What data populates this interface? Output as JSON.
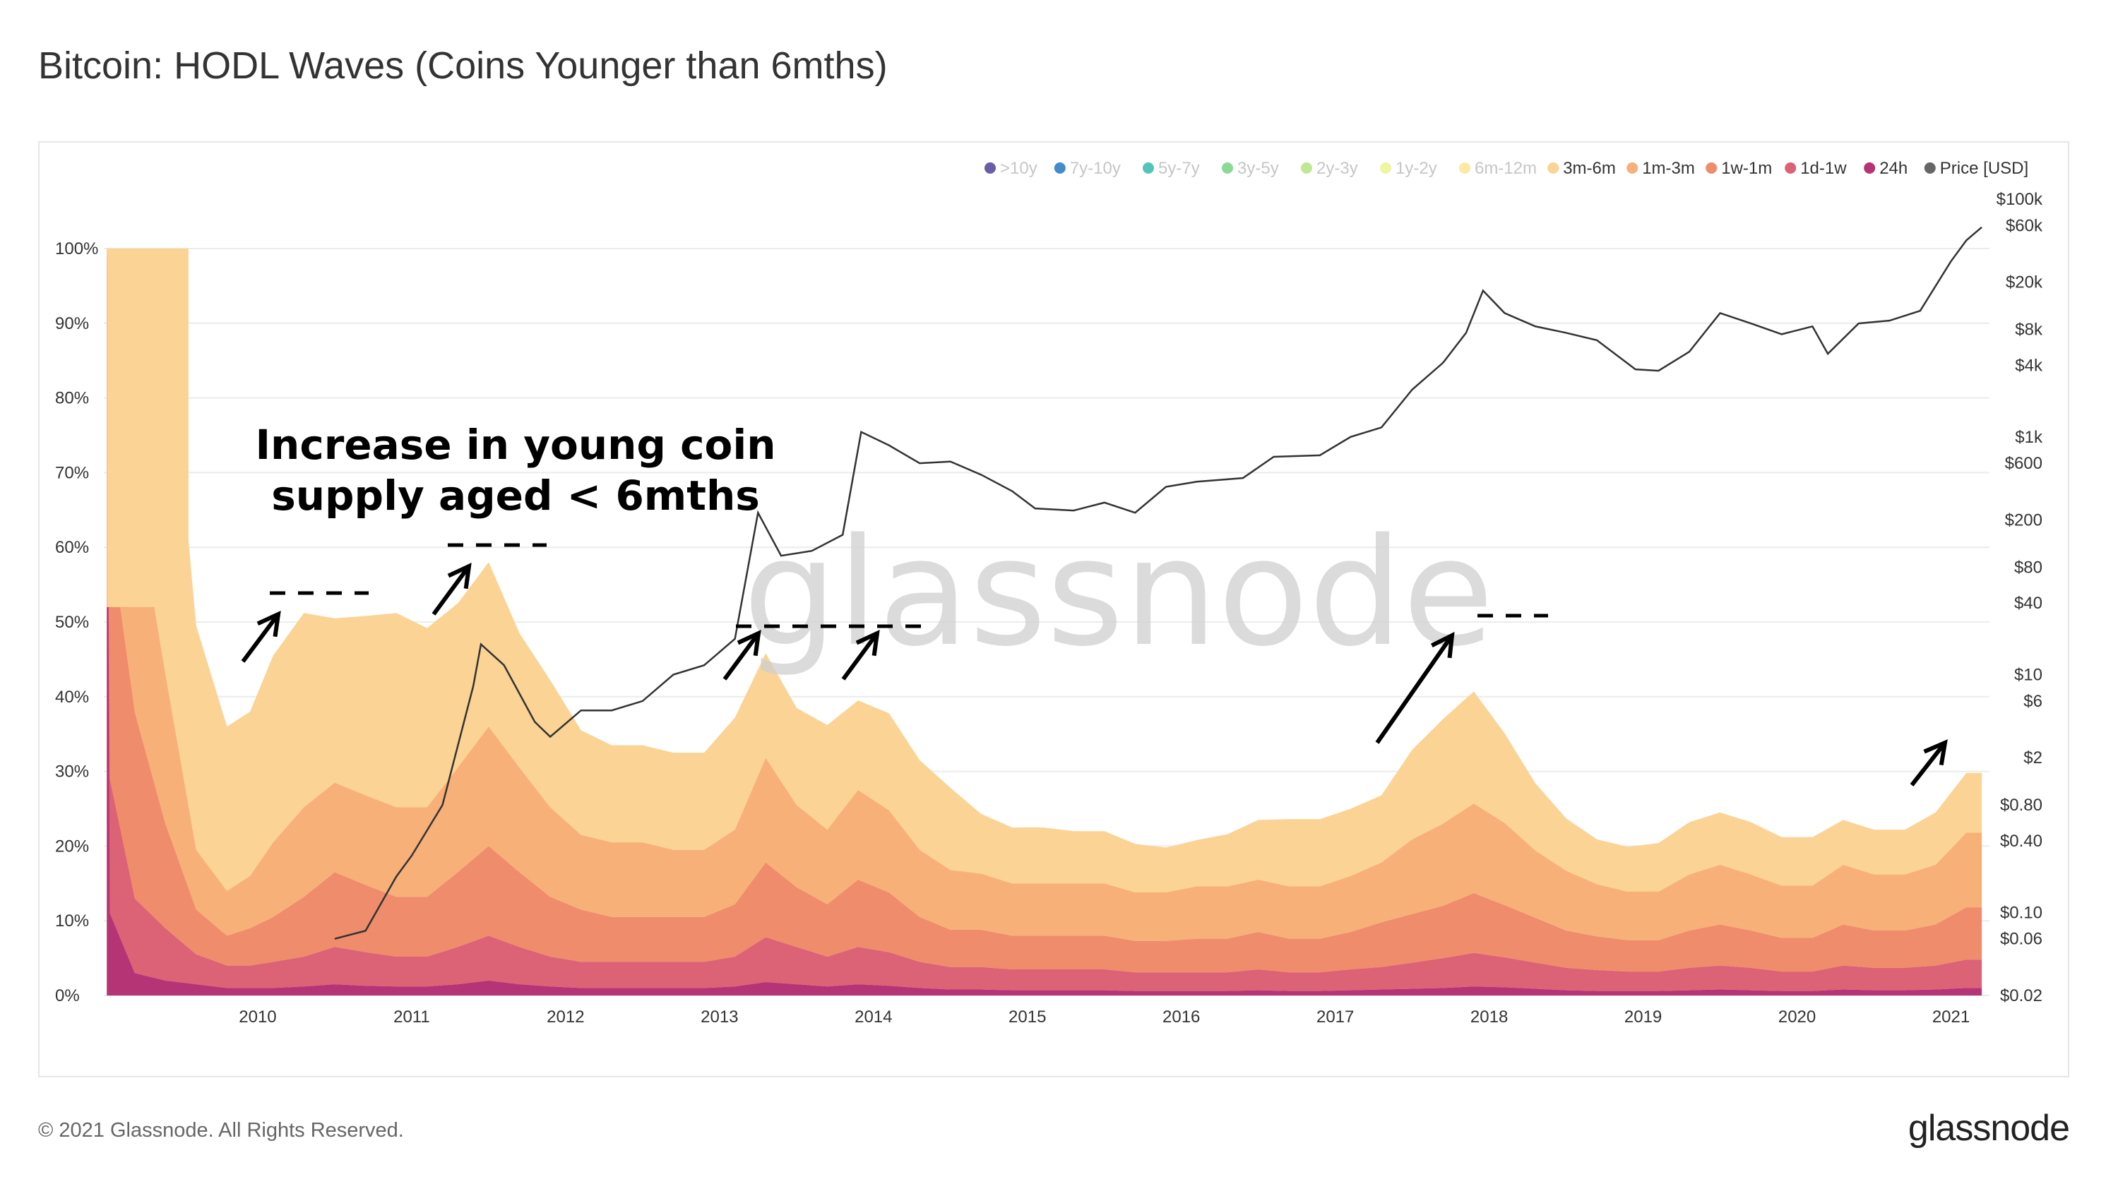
{
  "title": "Bitcoin: HODL Waves (Coins Younger than 6mths)",
  "footer": {
    "copyright": "© 2021 Glassnode. All Rights Reserved.",
    "logo": "glassnode"
  },
  "watermark": "glassnode",
  "annotation": {
    "line1": "Increase in young coin",
    "line2": "supply aged < 6mths"
  },
  "colors": {
    "3m-6m": "#fbd394",
    "1m-3m": "#f8b079",
    "1w-1m": "#ef8c6b",
    "1d-1w": "#dc6276",
    "24h": "#b43475",
    "price": "#333333"
  },
  "chart_data": {
    "type": "area",
    "stacked": true,
    "x_ticks": [
      "2010",
      "2011",
      "2012",
      "2013",
      "2014",
      "2015",
      "2016",
      "2017",
      "2018",
      "2019",
      "2020",
      "2021"
    ],
    "y_left_ticks": [
      "0%",
      "10%",
      "20%",
      "30%",
      "40%",
      "50%",
      "60%",
      "70%",
      "80%",
      "90%",
      "100%"
    ],
    "y_right_ticks": [
      "$0.02",
      "$0.06",
      "$0.10",
      "$0.40",
      "$0.80",
      "$2",
      "$6",
      "$10",
      "$40",
      "$80",
      "$200",
      "$600",
      "$1k",
      "$4k",
      "$8k",
      "$20k",
      "$60k",
      "$100k"
    ],
    "ylim": [
      0,
      100
    ],
    "right_axis_scale": "log",
    "legend_placement": "top-right",
    "legend": [
      {
        "label": ">10y",
        "color": "#5b4aa0",
        "active": false
      },
      {
        "label": "7y-10y",
        "color": "#2f7fc1",
        "active": false
      },
      {
        "label": "5y-7y",
        "color": "#3fbfb0",
        "active": false
      },
      {
        "label": "3y-5y",
        "color": "#7fd48a",
        "active": false
      },
      {
        "label": "2y-3y",
        "color": "#b8e68a",
        "active": false
      },
      {
        "label": "1y-2y",
        "color": "#ecf59a",
        "active": false
      },
      {
        "label": "6m-12m",
        "color": "#fbe79a",
        "active": false
      },
      {
        "label": "3m-6m",
        "color": "#fbd394",
        "active": true
      },
      {
        "label": "1m-3m",
        "color": "#f8b079",
        "active": true
      },
      {
        "label": "1w-1m",
        "color": "#ef8c6b",
        "active": true
      },
      {
        "label": "1d-1w",
        "color": "#dc6276",
        "active": true
      },
      {
        "label": "24h",
        "color": "#b43475",
        "active": true
      },
      {
        "label": "Price [USD]",
        "color": "#666666",
        "active": true
      }
    ],
    "x": [
      2009.2,
      2009.4,
      2009.6,
      2009.8,
      2009.95,
      2010.1,
      2010.3,
      2010.5,
      2010.7,
      2010.9,
      2011.1,
      2011.3,
      2011.5,
      2011.7,
      2011.9,
      2012.1,
      2012.3,
      2012.5,
      2012.7,
      2012.9,
      2013.1,
      2013.3,
      2013.5,
      2013.7,
      2013.9,
      2014.1,
      2014.3,
      2014.5,
      2014.7,
      2014.9,
      2015.1,
      2015.3,
      2015.5,
      2015.7,
      2015.9,
      2016.1,
      2016.3,
      2016.5,
      2016.7,
      2016.9,
      2017.1,
      2017.3,
      2017.5,
      2017.7,
      2017.9,
      2018.1,
      2018.3,
      2018.5,
      2018.7,
      2018.9,
      2019.1,
      2019.3,
      2019.5,
      2019.7,
      2019.9,
      2020.1,
      2020.3,
      2020.5,
      2020.7,
      2020.9,
      2021.1,
      2021.2
    ],
    "series": [
      {
        "name": "24h",
        "values": [
          3,
          2,
          1.5,
          1,
          1,
          1,
          1.2,
          1.5,
          1.3,
          1.2,
          1.2,
          1.5,
          2,
          1.5,
          1.2,
          1,
          1,
          1,
          1,
          1,
          1.2,
          1.8,
          1.5,
          1.2,
          1.5,
          1.3,
          1,
          0.8,
          0.8,
          0.7,
          0.7,
          0.7,
          0.7,
          0.6,
          0.6,
          0.6,
          0.6,
          0.7,
          0.6,
          0.6,
          0.7,
          0.8,
          0.9,
          1,
          1.2,
          1.1,
          0.9,
          0.7,
          0.6,
          0.6,
          0.6,
          0.7,
          0.8,
          0.7,
          0.6,
          0.6,
          0.8,
          0.7,
          0.7,
          0.8,
          1,
          1
        ]
      },
      {
        "name": "1d-1w",
        "values": [
          10,
          7,
          4,
          3,
          3,
          3.5,
          4,
          5,
          4.5,
          4,
          4,
          5,
          6,
          5,
          4,
          3.5,
          3.5,
          3.5,
          3.5,
          3.5,
          4,
          6,
          5,
          4,
          5,
          4.5,
          3.5,
          3,
          3,
          2.8,
          2.8,
          2.8,
          2.8,
          2.5,
          2.5,
          2.5,
          2.5,
          2.8,
          2.5,
          2.5,
          2.8,
          3,
          3.5,
          4,
          4.5,
          4,
          3.5,
          3,
          2.8,
          2.6,
          2.6,
          3,
          3.2,
          3,
          2.6,
          2.6,
          3.2,
          3,
          3,
          3.2,
          3.8,
          3.8
        ]
      },
      {
        "name": "1w-1m",
        "values": [
          25,
          14,
          6,
          4,
          5,
          6,
          8,
          10,
          9,
          8,
          8,
          10,
          12,
          10,
          8,
          7,
          6,
          6,
          6,
          6,
          7,
          10,
          8,
          7,
          9,
          8,
          6,
          5,
          5,
          4.5,
          4.5,
          4.5,
          4.5,
          4.2,
          4.2,
          4.5,
          4.5,
          5,
          4.5,
          4.5,
          5,
          6,
          6.5,
          7,
          8,
          7,
          6,
          5,
          4.5,
          4.2,
          4.2,
          5,
          5.5,
          5,
          4.5,
          4.5,
          5.5,
          5,
          5,
          5.5,
          7,
          7
        ]
      },
      {
        "name": "1m-3m",
        "values": [
          30,
          20,
          8,
          6,
          7,
          10,
          12,
          12,
          12,
          12,
          12,
          14,
          16,
          14,
          12,
          10,
          10,
          10,
          9,
          9,
          10,
          14,
          11,
          10,
          12,
          11,
          9,
          8,
          7.5,
          7,
          7,
          7,
          7,
          6.5,
          6.5,
          7,
          7,
          7,
          7,
          7,
          7.5,
          8,
          10,
          11,
          12,
          11,
          9,
          8,
          7,
          6.5,
          6.5,
          7.5,
          8,
          7.5,
          7,
          7,
          8,
          7.5,
          7.5,
          8,
          10,
          10
        ]
      },
      {
        "name": "3m-6m",
        "values": [
          32,
          52,
          30,
          22,
          22,
          25,
          26,
          22,
          24,
          26,
          24,
          22,
          22,
          18,
          17,
          14,
          13,
          13,
          13,
          13,
          15,
          14,
          13,
          14,
          12,
          13,
          12,
          11,
          8,
          7.5,
          7.5,
          7,
          7,
          6.5,
          6,
          6.2,
          7,
          8,
          9,
          9,
          9,
          9,
          12,
          14,
          15,
          12,
          9,
          7,
          6,
          6,
          6.5,
          7,
          7,
          7,
          6.5,
          6.5,
          6,
          6,
          6,
          7,
          8,
          8
        ]
      }
    ],
    "price_usd": {
      "x": [
        2010.5,
        2010.7,
        2010.9,
        2011.0,
        2011.2,
        2011.4,
        2011.45,
        2011.6,
        2011.8,
        2011.9,
        2012.1,
        2012.3,
        2012.5,
        2012.7,
        2012.9,
        2013.1,
        2013.25,
        2013.4,
        2013.6,
        2013.8,
        2013.92,
        2014.1,
        2014.3,
        2014.5,
        2014.7,
        2014.9,
        2015.05,
        2015.3,
        2015.5,
        2015.7,
        2015.9,
        2016.1,
        2016.4,
        2016.6,
        2016.9,
        2017.1,
        2017.3,
        2017.5,
        2017.7,
        2017.85,
        2017.96,
        2018.1,
        2018.3,
        2018.5,
        2018.7,
        2018.95,
        2019.1,
        2019.3,
        2019.5,
        2019.7,
        2019.9,
        2020.1,
        2020.2,
        2020.4,
        2020.6,
        2020.8,
        2021.0,
        2021.1,
        2021.2
      ],
      "values": [
        0.06,
        0.07,
        0.2,
        0.3,
        0.8,
        8,
        18,
        12,
        4,
        3,
        5,
        5,
        6,
        10,
        12,
        20,
        230,
        100,
        110,
        150,
        1100,
        850,
        600,
        620,
        480,
        350,
        250,
        240,
        280,
        230,
        380,
        420,
        450,
        680,
        700,
        1000,
        1200,
        2500,
        4200,
        7500,
        17000,
        11000,
        8500,
        7500,
        6500,
        3700,
        3600,
        5200,
        11000,
        9000,
        7300,
        8500,
        5000,
        9000,
        9500,
        11500,
        30000,
        45000,
        58000
      ]
    }
  }
}
